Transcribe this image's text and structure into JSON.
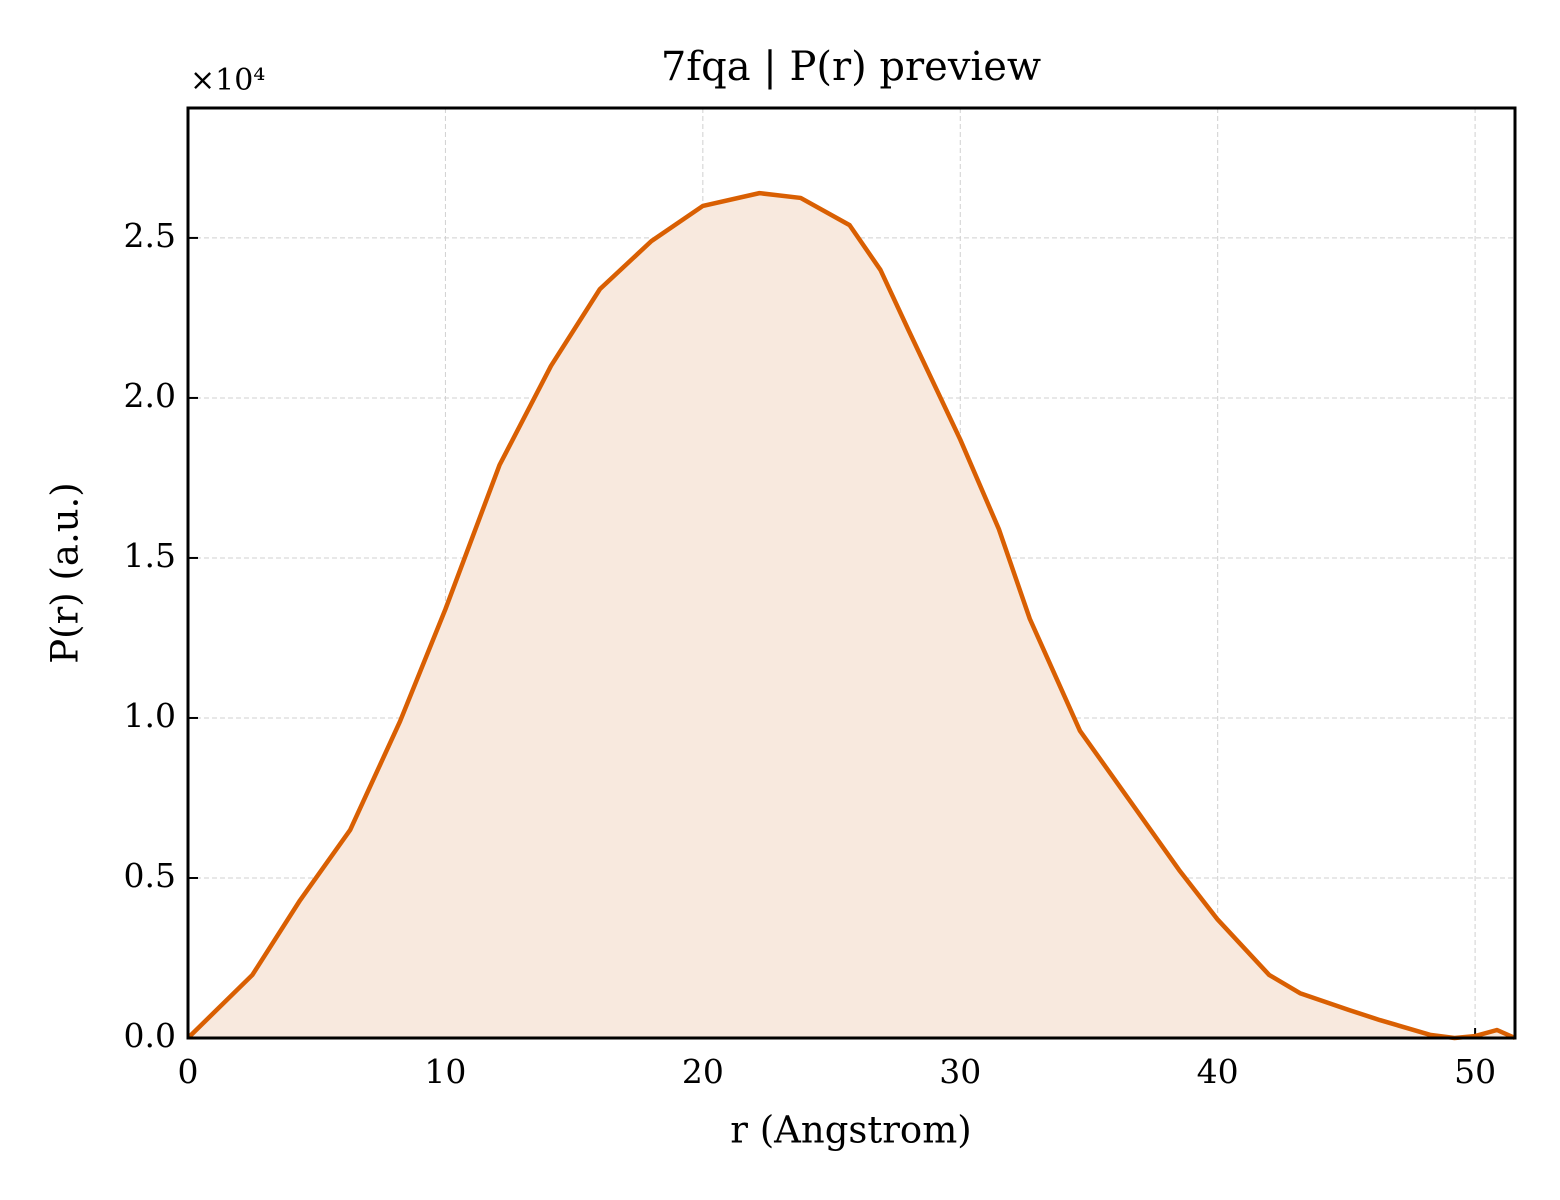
{
  "chart_data": {
    "type": "line",
    "title": "7fqa | P(r) preview",
    "x_label": "r (Angstrom)",
    "y_label": "P(r) (a.u.)",
    "y_scale_label": "×10⁴",
    "x": [
      0,
      2.5,
      4.35,
      6.3,
      8.24,
      10,
      12.1,
      14.1,
      16,
      18,
      20,
      22.2,
      23.8,
      25.7,
      26.9,
      28,
      30,
      31.5,
      32.7,
      34.65,
      36.6,
      38.5,
      40,
      42,
      43.2,
      45.1,
      46.3,
      48.25,
      49.2,
      50,
      50.85,
      51.55
    ],
    "values": [
      0,
      0.197,
      0.43,
      0.65,
      0.99,
      1.34,
      1.79,
      2.1,
      2.34,
      2.49,
      2.6,
      2.64,
      2.625,
      2.54,
      2.4,
      2.21,
      1.87,
      1.59,
      1.31,
      0.96,
      0.74,
      0.525,
      0.37,
      0.197,
      0.14,
      0.0875,
      0.056,
      0.01,
      0,
      0.006,
      0.025,
      0
    ],
    "color": "#d95f02",
    "fill_color": "#f8e9de",
    "xlim": [
      0,
      51.55
    ],
    "ylim": [
      0,
      2.906
    ],
    "xticks": [
      0,
      10,
      20,
      30,
      40,
      50
    ],
    "yticks": [
      {
        "value": 0,
        "label": "0.0"
      },
      0.5,
      {
        "value": 1,
        "label": "1.0"
      },
      1.5,
      {
        "value": 2,
        "label": "2.0"
      },
      2.5
    ],
    "grid": true
  }
}
